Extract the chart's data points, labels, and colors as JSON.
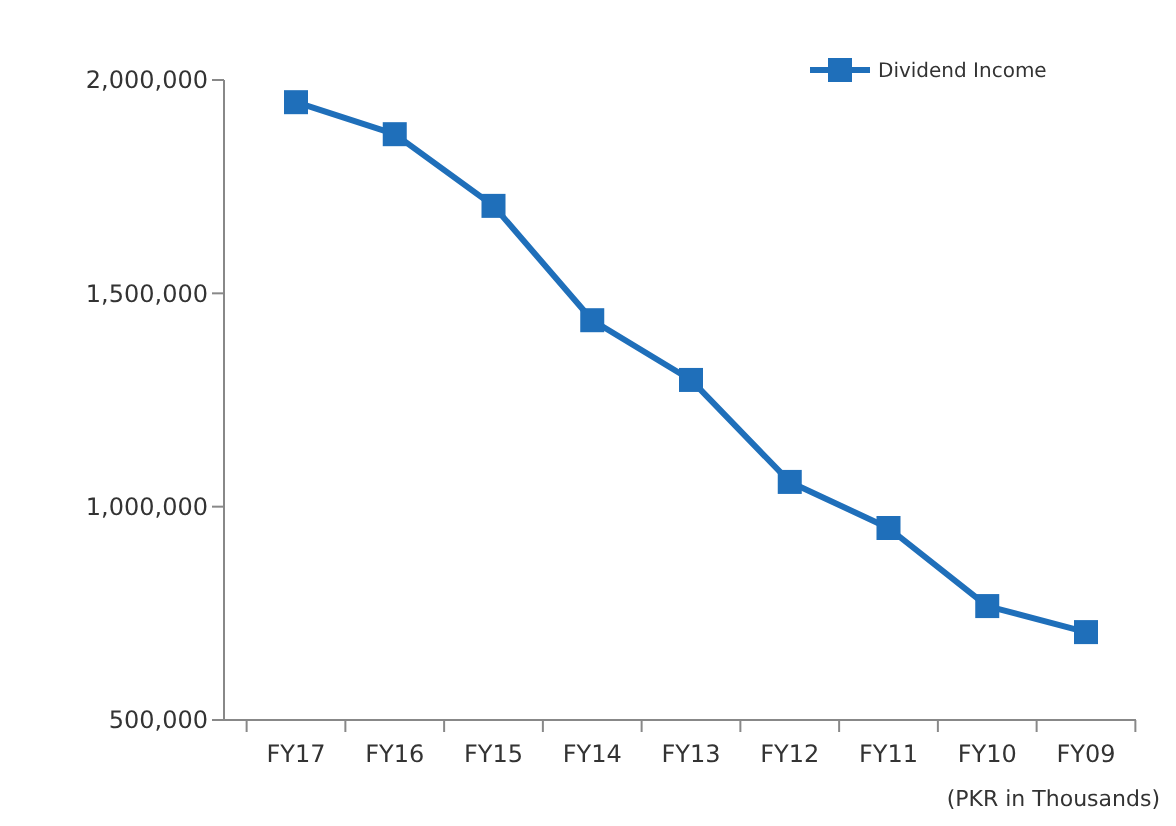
{
  "chart_data": {
    "type": "line",
    "categories": [
      "FY17",
      "FY16",
      "FY15",
      "FY14",
      "FY13",
      "FY12",
      "FY11",
      "FY10",
      "FY09"
    ],
    "series": [
      {
        "name": "Dividend Income",
        "color": "#1f6fba",
        "values": [
          1948000,
          1873000,
          1705000,
          1437000,
          1297000,
          1058000,
          950000,
          767000,
          706000
        ]
      }
    ],
    "ylim": [
      500000,
      2000000
    ],
    "yticks": [
      {
        "value": 500000,
        "label": "500,000"
      },
      {
        "value": 1000000,
        "label": "1,000,000"
      },
      {
        "value": 1500000,
        "label": "1,500,000"
      },
      {
        "value": 2000000,
        "label": "2,000,000"
      }
    ],
    "grid": false,
    "legend": "top right",
    "marker": "square",
    "line_style": "solid",
    "annotations": [
      "(PKR in Thousands)"
    ]
  }
}
